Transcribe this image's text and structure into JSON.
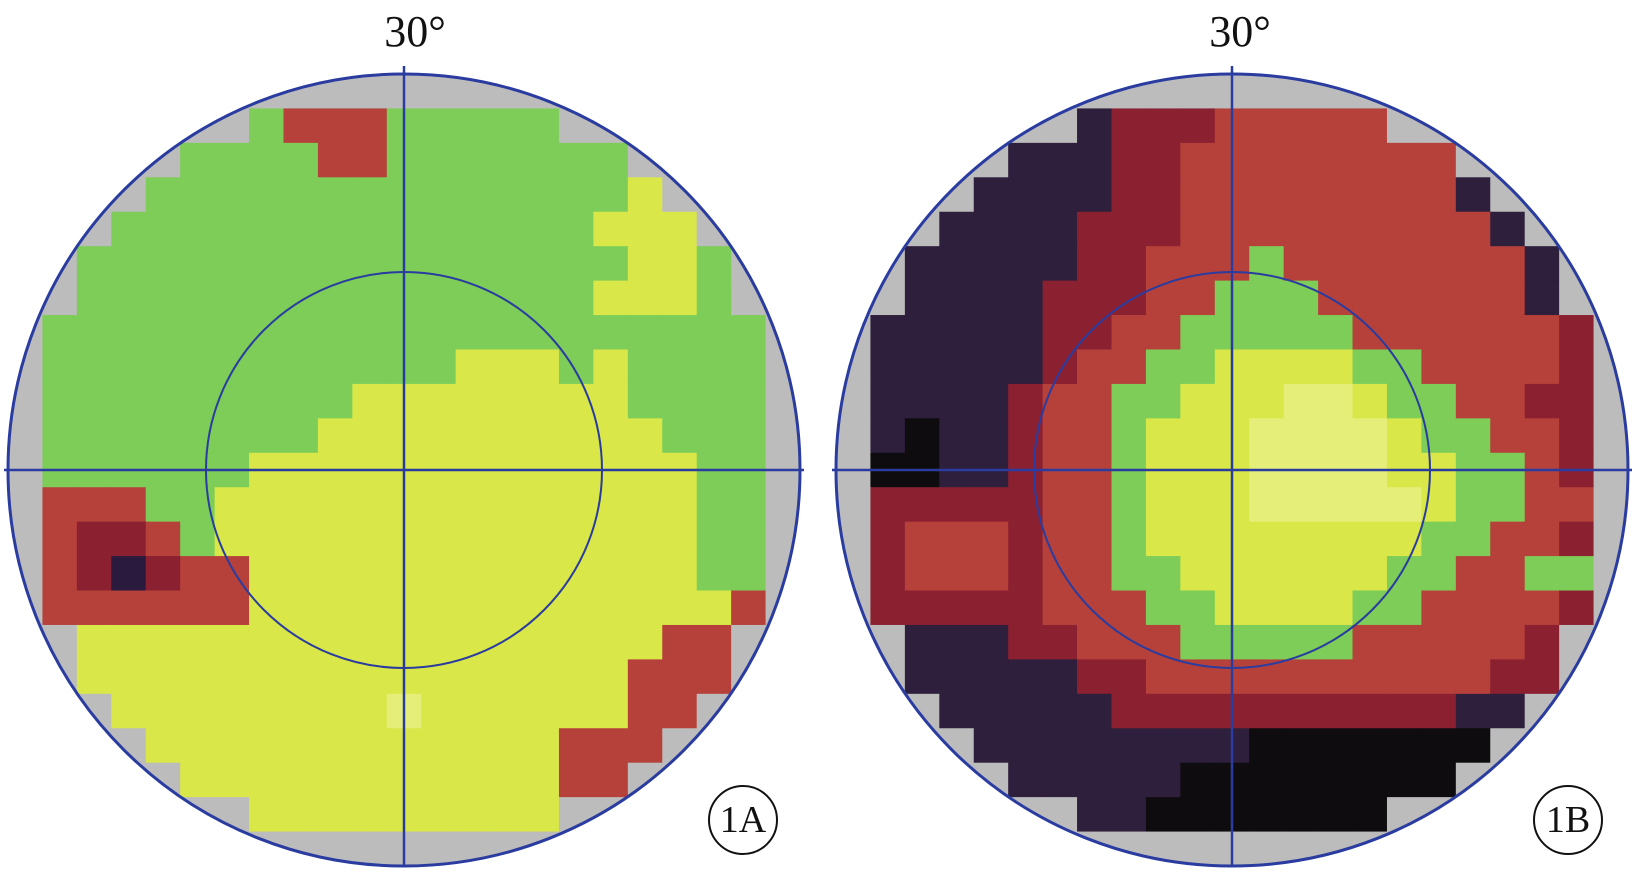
{
  "figure": {
    "panels": [
      {
        "id": "1A",
        "angle_label": "30°",
        "badge": "1A",
        "map": [
          "ggggggggggggggggggggggg",
          "ggggggggrrrgggggggggggg",
          "gggggggggrrgggggggggggg",
          "ggggggggggggggggggyyggg",
          "gggggggggggggggggyyyggg",
          "ggggggggggggggggggyyggg",
          "gggggggggggggggggyyyggg",
          "ggggggggggggggggggggggg",
          "gggggggggggggyyygyggggg",
          "ggggggggggyyyyyyyyggggg",
          "gggggggggyyyyyyyyyygggg",
          "gggggggyyyyyyyyyyyyyggg",
          "rrrrggyyyyyyyyyyyyyyggg",
          "rrddrgyyyyyyyyyyyyyyggg",
          "rrdpdrryyyyyyyyyyyyyggg",
          "grrrrrryyyyyyyyyyyyyyrr",
          "ggyyyyyyyyyyyyyyyyyrrrr",
          "ggyyyyyyyyyyyyyyyyrrrrr",
          "gyyyyyyyyyylyyyyyyrrrrr",
          "gyyyyyyyyyyyyyyyrrrdddr",
          "ggyyyyyyyyyyyyyyrrrdddr",
          "gggyyyyyyyyyyyyyyrrrrrg",
          "ggggyyyyyyyyyyyyyyygggg"
        ]
      },
      {
        "id": "1B",
        "angle_label": "30°",
        "badge": "1B",
        "map": [
          "kkkkkkkkkrrrrrrrrkkkkkk",
          "kkkkkkkkdddrrrrrrkkkkkk",
          "kbbbkkkkddrrrrrrrrkkkkk",
          "bbbkkkkkddrrrrrrrrkkkbk",
          "kkkkkkkdddrrrrrrrrrkkkk",
          "kkkkkkkddrrrgrrrrrrrkkk",
          "kkkkkkdddrrgggrrrrrrkkk",
          "kkkkkkddrrgggggrrrrrrdd",
          "kkkkkkdrrggyyyyggrrrrdd",
          "kkkkkdrrggyyyllyggrrddd",
          "kkbkkdrrgyyyllllyggrrdd",
          "kbbkkdrrgyyyllllyyggrdd",
          "ddddddrrgyyylllllyggrrd",
          "ddrrrdrrgyyyyyyyyggrrdk",
          "ddrrrdrrggyyyyyyggrrggk",
          "ddddddrrrggyyyyggrrrrdk",
          "dkkkkddrrrgggggrrrrrddk",
          "dkkkkkkddrrrrrrrrrrddkk",
          "kkkkkkkkddddddddddkkkkk",
          "bbkkkkkkkkkkbbbbbbbkkkk",
          "bbbbkkkkkkbbbbbbbbbbbbk",
          "bbbbkkkkkbbbbbbbbbbbbbb",
          "bbbbbkkkkbbbbbbbbbbbbbb"
        ]
      }
    ],
    "colors": {
      "g": "#7dcd58",
      "y": "#d9e748",
      "l": "#e6ee7a",
      "r": "#b5413a",
      "d": "#8b2031",
      "p": "#2a1b3e",
      "k": "#2e1f3c",
      "b": "#0e0c0e",
      "edge": "#bcbcbc",
      "line": "#2a3ca0"
    }
  }
}
